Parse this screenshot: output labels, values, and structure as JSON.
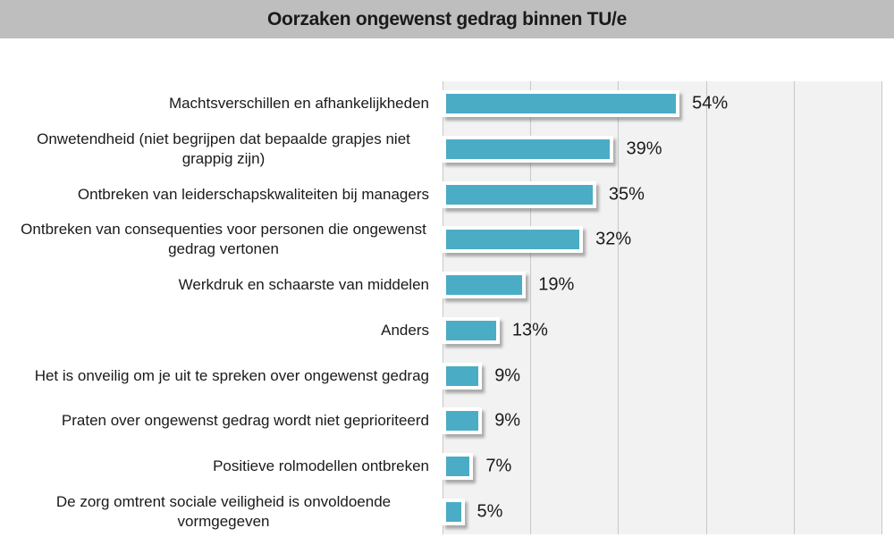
{
  "title": "Oorzaken ongewenst gedrag binnen TU/e",
  "colors": {
    "banner_background": "#bebebe",
    "plot_background": "#f2f2f2",
    "gridline": "#c8c8c8",
    "bar_fill": "#4bacc6",
    "bar_border": "#ffffff",
    "text": "#1a1a1a"
  },
  "chart_data": {
    "type": "bar",
    "orientation": "horizontal",
    "title": "Oorzaken ongewenst gedrag binnen TU/e",
    "categories": [
      "Machtsverschillen en afhankelijkheden",
      "Onwetendheid (niet begrijpen dat bepaalde grapjes niet grappig zijn)",
      "Ontbreken van leiderschapskwaliteiten bij managers",
      "Ontbreken van consequenties voor personen die ongewenst gedrag vertonen",
      "Werkdruk en schaarste van middelen",
      "Anders",
      "Het is onveilig om je uit te spreken over ongewenst gedrag",
      "Praten over ongewenst gedrag wordt niet geprioriteerd",
      "Positieve rolmodellen ontbreken",
      "De zorg omtrent sociale veiligheid is onvoldoende vormgegeven"
    ],
    "values": [
      54,
      39,
      35,
      32,
      19,
      13,
      9,
      9,
      7,
      5
    ],
    "value_labels": [
      "54%",
      "39%",
      "35%",
      "32%",
      "19%",
      "13%",
      "9%",
      "9%",
      "7%",
      "5%"
    ],
    "xlabel": "",
    "ylabel": "",
    "xlim": [
      0,
      100
    ],
    "gridline_interval": 20,
    "grid": "vertical",
    "legend": "none",
    "data_labels": "outside-end"
  }
}
